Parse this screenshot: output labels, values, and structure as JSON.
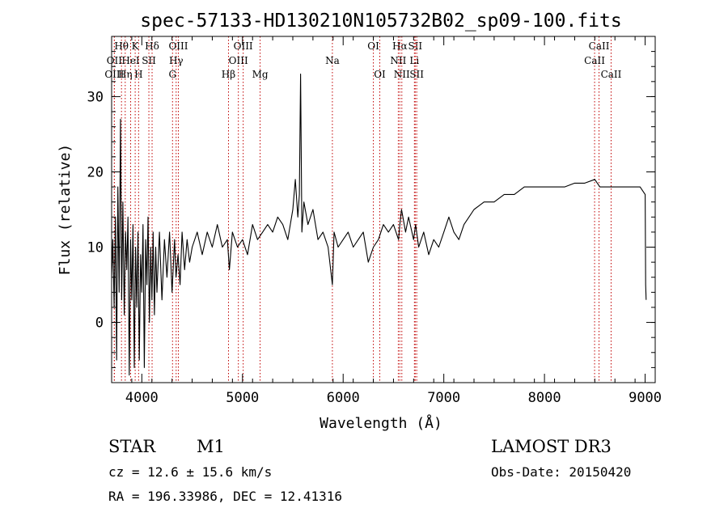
{
  "chart_data": {
    "type": "line",
    "title": "spec-57133-HD130210N105732B02_sp09-100.fits",
    "xlabel": "Wavelength (Å)",
    "ylabel": "Flux (relative)",
    "xlim": [
      3700,
      9100
    ],
    "ylim": [
      -8,
      38
    ],
    "x_ticks": [
      4000,
      5000,
      6000,
      7000,
      8000,
      9000
    ],
    "y_ticks": [
      0,
      10,
      20,
      30
    ],
    "x_minor_step": 200,
    "y_minor_step": 2,
    "grid": false,
    "series": [
      {
        "name": "spectrum",
        "x": [
          3700,
          3712,
          3725,
          3738,
          3750,
          3762,
          3775,
          3788,
          3800,
          3812,
          3825,
          3838,
          3850,
          3862,
          3875,
          3888,
          3900,
          3912,
          3925,
          3938,
          3950,
          3962,
          3975,
          3988,
          4000,
          4012,
          4025,
          4038,
          4050,
          4062,
          4075,
          4088,
          4100,
          4112,
          4125,
          4138,
          4150,
          4175,
          4200,
          4225,
          4250,
          4275,
          4300,
          4325,
          4340,
          4360,
          4380,
          4400,
          4425,
          4450,
          4475,
          4500,
          4550,
          4600,
          4650,
          4700,
          4750,
          4800,
          4850,
          4870,
          4900,
          4950,
          5000,
          5050,
          5100,
          5150,
          5200,
          5250,
          5300,
          5350,
          5400,
          5450,
          5500,
          5525,
          5550,
          5565,
          5577,
          5590,
          5610,
          5650,
          5700,
          5750,
          5800,
          5850,
          5893,
          5910,
          5950,
          6000,
          6050,
          6100,
          6150,
          6200,
          6250,
          6300,
          6350,
          6400,
          6450,
          6500,
          6550,
          6563,
          6580,
          6620,
          6650,
          6700,
          6720,
          6750,
          6800,
          6850,
          6900,
          6950,
          7000,
          7050,
          7100,
          7150,
          7200,
          7250,
          7300,
          7400,
          7500,
          7600,
          7700,
          7800,
          7900,
          8000,
          8100,
          8200,
          8300,
          8400,
          8500,
          8550,
          8600,
          8650,
          8700,
          8800,
          8900,
          8950,
          9000,
          9005,
          9010
        ],
        "values": [
          6,
          11,
          2,
          14,
          -5,
          18,
          4,
          27,
          3,
          16,
          1,
          12,
          7,
          14,
          -7,
          11,
          3,
          13,
          -6,
          10,
          2,
          12,
          -5,
          9,
          4,
          13,
          -6,
          11,
          5,
          14,
          0,
          10,
          3,
          12,
          1,
          10,
          4,
          12,
          3,
          11,
          6,
          12,
          4,
          11,
          6,
          9,
          5,
          12,
          7,
          11,
          8,
          10,
          12,
          9,
          12,
          10,
          13,
          10,
          11,
          7,
          12,
          10,
          11,
          9,
          13,
          11,
          12,
          13,
          12,
          14,
          13,
          11,
          15,
          19,
          14,
          17,
          33,
          12,
          16,
          13,
          15,
          11,
          12,
          10,
          5,
          12,
          10,
          11,
          12,
          10,
          11,
          12,
          8,
          10,
          11,
          13,
          12,
          13,
          11,
          13,
          15,
          12,
          14,
          11,
          13,
          10,
          12,
          9,
          11,
          10,
          12,
          14,
          12,
          11,
          13,
          14,
          15,
          16,
          16,
          17,
          17,
          18,
          18,
          18,
          18,
          18,
          18.5,
          18.5,
          19,
          18,
          18,
          18,
          18,
          18,
          18,
          18,
          17,
          5,
          3
        ]
      }
    ],
    "lines": [
      {
        "label": "Hθ",
        "x": 3798,
        "row": 0
      },
      {
        "label": "OII",
        "x": 3727,
        "row": 1
      },
      {
        "label": "OIII",
        "x": 3727,
        "row": 2
      },
      {
        "label": "K",
        "x": 3934,
        "row": 0
      },
      {
        "label": "HeI",
        "x": 3889,
        "row": 1
      },
      {
        "label": "Hη",
        "x": 3835,
        "row": 2
      },
      {
        "label": "H",
        "x": 3968,
        "row": 2
      },
      {
        "label": "Hδ",
        "x": 4102,
        "row": 0
      },
      {
        "label": "SII",
        "x": 4070,
        "row": 1
      },
      {
        "label": "OIII",
        "x": 4363,
        "row": 0
      },
      {
        "label": "Hγ",
        "x": 4341,
        "row": 1
      },
      {
        "label": "G",
        "x": 4305,
        "row": 2
      },
      {
        "label": "Hβ",
        "x": 4861,
        "row": 2
      },
      {
        "label": "OIII",
        "x": 5007,
        "row": 0
      },
      {
        "label": "OIII",
        "x": 4959,
        "row": 1
      },
      {
        "label": "Mg",
        "x": 5175,
        "row": 2
      },
      {
        "label": "Na",
        "x": 5893,
        "row": 1
      },
      {
        "label": "OI",
        "x": 6300,
        "row": 0
      },
      {
        "label": "OI",
        "x": 6364,
        "row": 2
      },
      {
        "label": "Hα",
        "x": 6563,
        "row": 0
      },
      {
        "label": "SII",
        "x": 6716,
        "row": 0
      },
      {
        "label": "NII",
        "x": 6548,
        "row": 1
      },
      {
        "label": "Li",
        "x": 6708,
        "row": 1
      },
      {
        "label": "NII",
        "x": 6583,
        "row": 2
      },
      {
        "label": "SII",
        "x": 6731,
        "row": 2
      },
      {
        "label": "CaII",
        "x": 8542,
        "row": 0
      },
      {
        "label": "CaII",
        "x": 8498,
        "row": 1
      },
      {
        "label": "CaII",
        "x": 8662,
        "row": 2
      }
    ],
    "line_color": "#c00000"
  },
  "info": {
    "object_class": "STAR",
    "subclass": "M1",
    "survey": "LAMOST DR3",
    "redshift": "cz = 12.6 ± 15.6 km/s",
    "obs_date": "Obs-Date: 20150420",
    "coords": "RA = 196.33986, DEC =  12.41316"
  }
}
